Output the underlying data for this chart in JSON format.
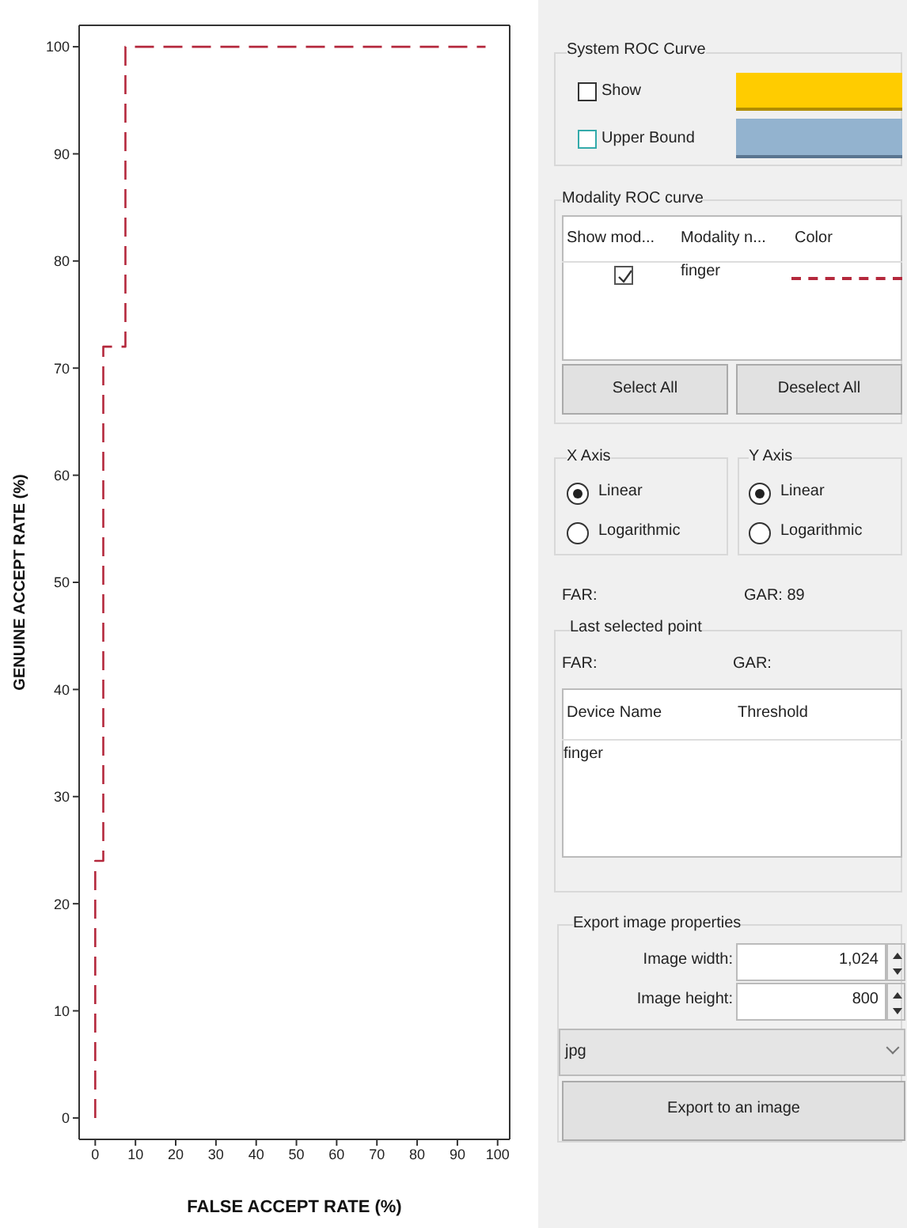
{
  "chart_data": [
    {
      "type": "line",
      "xlabel": "FALSE ACCEPT RATE (%)",
      "ylabel": "GENUINE ACCEPT RATE (%)",
      "x": [
        0,
        0,
        2,
        2,
        7.5,
        7.5,
        97
      ],
      "series": [
        {
          "color": "#b4283c",
          "values": [
            0,
            24,
            24,
            72,
            72,
            100,
            100
          ]
        }
      ],
      "xlim": [
        -4,
        103
      ],
      "xticks": [
        0,
        10,
        20,
        30,
        40,
        50,
        60,
        70,
        80,
        90,
        100
      ],
      "ylim": [
        -2,
        102
      ],
      "yticks": [
        0,
        10,
        20,
        30,
        40,
        50,
        60,
        70,
        80,
        90,
        100
      ],
      "grid": false,
      "legend": false,
      "marker": "none",
      "line_style": "dashed"
    },
    {
      "type": "other",
      "annotations": [
        "System ROC Curve",
        "Show",
        "Upper Bound",
        "Modality ROC curve",
        "Show mod...",
        "Modality n...",
        "Color",
        "finger",
        "Select All",
        "Deselect All",
        "X Axis",
        "Linear",
        "Logarithmic",
        "Y Axis",
        "Linear",
        "Logarithmic",
        "FAR:",
        "GAR: 89",
        "Last selected point",
        "FAR:",
        "GAR:",
        "Device Name",
        "Threshold",
        "finger",
        "Export image properties",
        "Image width:",
        "1,024",
        "Image height:",
        "800",
        "jpg",
        "Export to an image"
      ]
    }
  ]
}
